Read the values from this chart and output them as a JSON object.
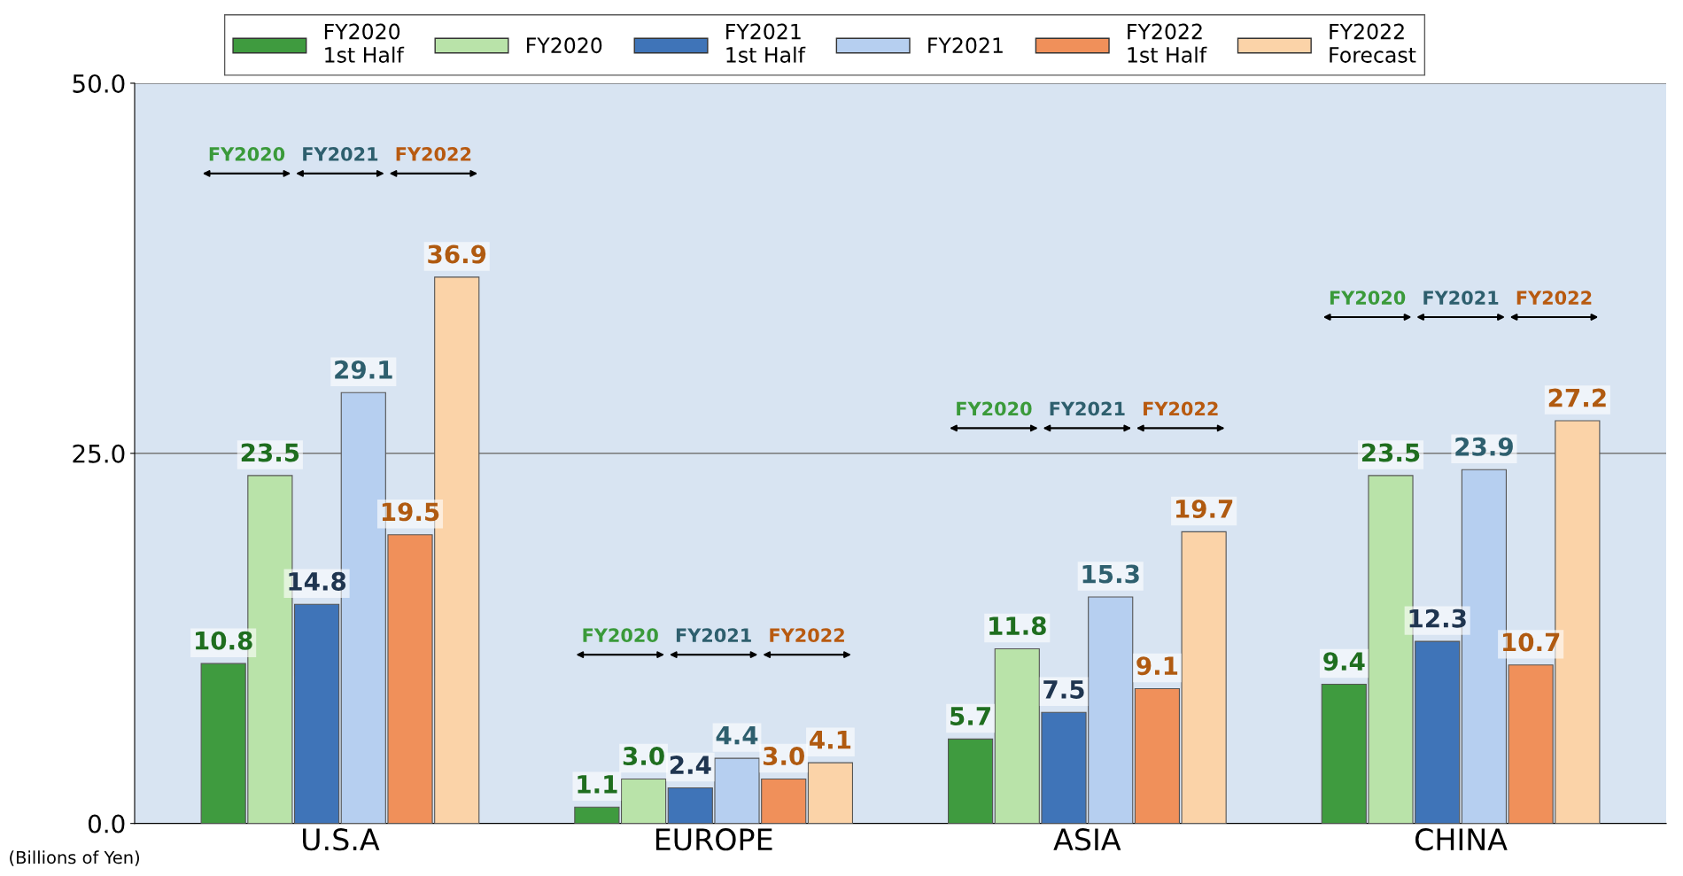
{
  "chart_data": {
    "type": "bar",
    "categories": [
      "U.S.A",
      "EUROPE",
      "ASIA",
      "CHINA"
    ],
    "series": [
      {
        "name": "FY2020\n1st Half",
        "color": "#3f9b3f",
        "values": [
          10.8,
          1.1,
          5.7,
          9.4
        ],
        "value_labels": [
          "10.8",
          "1.1",
          "5.7",
          "9.4"
        ]
      },
      {
        "name": "FY2020",
        "color": "#b9e3a9",
        "values": [
          23.5,
          3.0,
          11.8,
          23.5
        ],
        "value_labels": [
          "23.5",
          "3.0",
          "11.8",
          "23.5"
        ]
      },
      {
        "name": "FY2021\n1st Half",
        "color": "#3f74b8",
        "values": [
          14.8,
          2.4,
          7.5,
          12.3
        ],
        "value_labels": [
          "14.8",
          "2.4",
          "7.5",
          "12.3"
        ]
      },
      {
        "name": "FY2021",
        "color": "#b6cff0",
        "values": [
          29.1,
          4.4,
          15.3,
          23.9
        ],
        "value_labels": [
          "29.1",
          "4.4",
          "15.3",
          "23.9"
        ]
      },
      {
        "name": "FY2022\n1st Half",
        "color": "#f0905a",
        "values": [
          19.5,
          3.0,
          9.1,
          10.7
        ],
        "value_labels": [
          "19.5",
          "3.0",
          "9.1",
          "10.7"
        ]
      },
      {
        "name": "FY2022\nForecast",
        "color": "#fbd3a8",
        "values": [
          36.9,
          4.1,
          19.7,
          27.2
        ],
        "value_labels": [
          "36.9",
          "4.1",
          "19.7",
          "27.2"
        ]
      }
    ],
    "ylim": [
      0,
      50
    ],
    "yticks": [
      {
        "value": 0,
        "label": "0.0"
      },
      {
        "value": 25,
        "label": "25.0"
      },
      {
        "value": 50,
        "label": "50.0"
      }
    ],
    "ylabel": "(Billions of Yen)",
    "grid": "y",
    "legend": "top",
    "annotations": [
      "FY2020",
      "FY2021",
      "FY2022",
      "FY2020",
      "FY2021",
      "FY2022",
      "FY2020",
      "FY2021",
      "FY2022",
      "FY2020",
      "FY2021",
      "FY2022"
    ]
  }
}
